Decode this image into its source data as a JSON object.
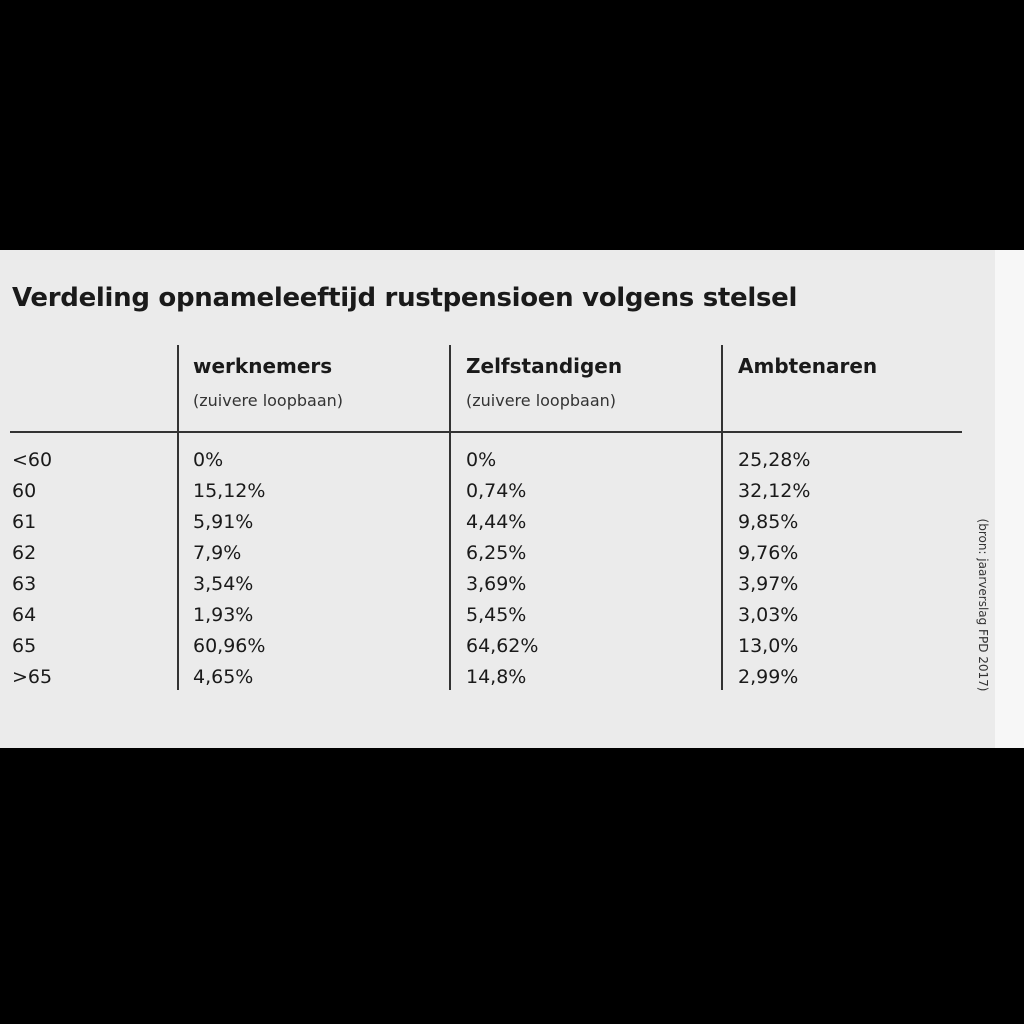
{
  "title": "Verdeling opnameleeftijd rustpensioen volgens stelsel",
  "table": {
    "columns": [
      {
        "name": "werknemers",
        "note": "(zuivere loopbaan)"
      },
      {
        "name": "Zelfstandigen",
        "note": "(zuivere loopbaan)"
      },
      {
        "name": "Ambtenaren"
      }
    ],
    "rows": [
      [
        "<60",
        "0%",
        "0%",
        "25,28%"
      ],
      [
        "60",
        "15,12%",
        "0,74%",
        "32,12%"
      ],
      [
        "61",
        "5,91%",
        "4,44%",
        "9,85%"
      ],
      [
        "62",
        "7,9%",
        "6,25%",
        "9,76%"
      ],
      [
        "63",
        "3,54%",
        "3,69%",
        "3,97%"
      ],
      [
        "64",
        "1,93%",
        "5,45%",
        "3,03%"
      ],
      [
        "65",
        "60,96%",
        "64,62%",
        "13,0%"
      ],
      [
        ">65",
        "4,65%",
        "14,8%",
        "2,99%"
      ]
    ]
  },
  "source": "(bron: jaarverslag FPD 2017)"
}
